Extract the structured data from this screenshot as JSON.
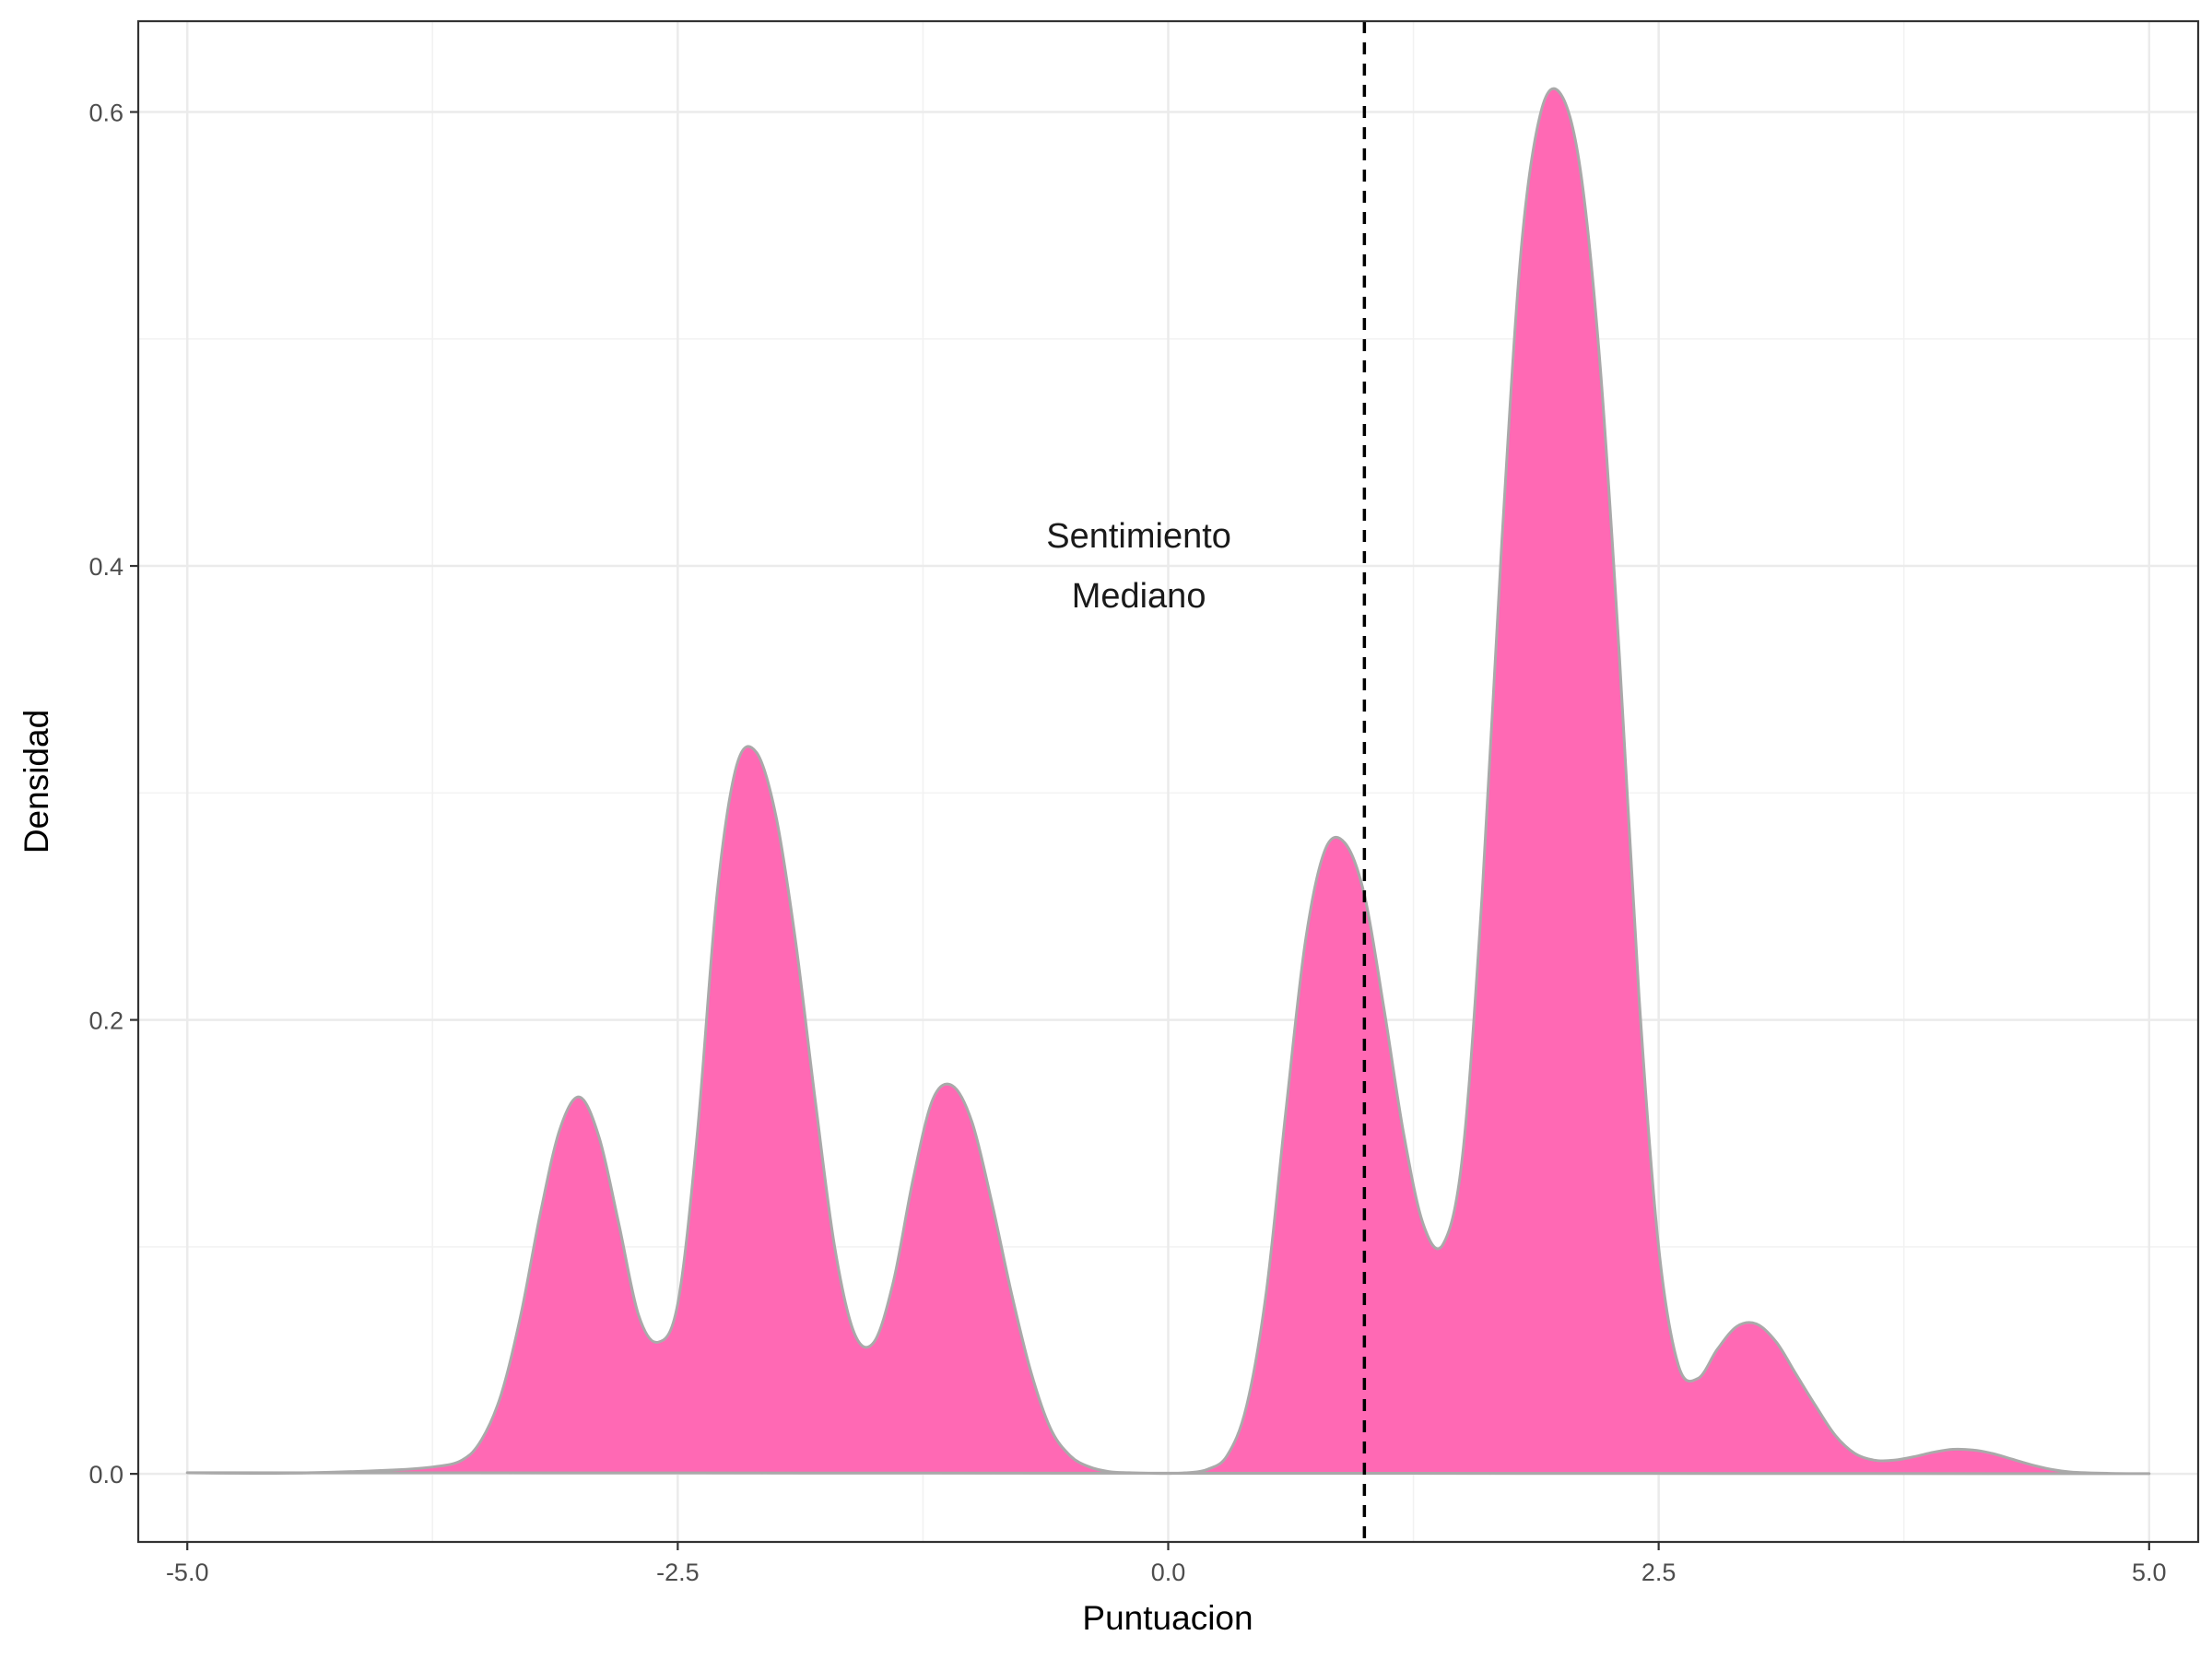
{
  "chart_data": {
    "type": "area",
    "xlabel": "Puntuacion",
    "ylabel": "Densidad",
    "xlim": [
      -5.25,
      5.25
    ],
    "ylim": [
      -0.03,
      0.64
    ],
    "x_ticks": [
      -5.0,
      -2.5,
      0.0,
      2.5,
      5.0
    ],
    "x_tick_labels": [
      "-5.0",
      "-2.5",
      "0.0",
      "2.5",
      "5.0"
    ],
    "y_ticks": [
      0.0,
      0.2,
      0.4,
      0.6
    ],
    "y_tick_labels": [
      "0.0",
      "0.2",
      "0.4",
      "0.6"
    ],
    "grid": true,
    "fill_color": "#FF69B4",
    "outline_color": "#A9A9A9",
    "median_line": {
      "x": 1.0,
      "style": "dashed",
      "color": "#000000"
    },
    "annotation": {
      "lines": [
        "Sentimiento",
        "Mediano"
      ],
      "x": -0.15,
      "y": 0.4
    },
    "series": [
      {
        "x": [
          -5.0,
          -4.5,
          -4.0,
          -3.75,
          -3.6,
          -3.5,
          -3.4,
          -3.3,
          -3.2,
          -3.1,
          -3.0,
          -2.9,
          -2.8,
          -2.7,
          -2.6,
          -2.5,
          -2.4,
          -2.3,
          -2.2,
          -2.1,
          -2.0,
          -1.9,
          -1.8,
          -1.7,
          -1.6,
          -1.5,
          -1.4,
          -1.3,
          -1.2,
          -1.1,
          -1.0,
          -0.9,
          -0.8,
          -0.7,
          -0.6,
          -0.5,
          -0.4,
          -0.3,
          -0.2,
          -0.1,
          0.0,
          0.1,
          0.2,
          0.3,
          0.4,
          0.5,
          0.6,
          0.7,
          0.8,
          0.9,
          1.0,
          1.1,
          1.2,
          1.3,
          1.4,
          1.5,
          1.6,
          1.7,
          1.8,
          1.9,
          2.0,
          2.1,
          2.2,
          2.3,
          2.4,
          2.5,
          2.6,
          2.7,
          2.8,
          2.9,
          3.0,
          3.1,
          3.2,
          3.3,
          3.4,
          3.5,
          3.6,
          3.7,
          3.8,
          3.9,
          4.0,
          4.1,
          4.2,
          4.3,
          4.4,
          4.5,
          4.6,
          4.8,
          5.0
        ],
        "y": [
          0.0005,
          0.0003,
          0.0015,
          0.003,
          0.006,
          0.015,
          0.035,
          0.07,
          0.115,
          0.152,
          0.166,
          0.148,
          0.11,
          0.07,
          0.058,
          0.075,
          0.15,
          0.255,
          0.312,
          0.318,
          0.29,
          0.235,
          0.165,
          0.1,
          0.062,
          0.058,
          0.085,
          0.13,
          0.165,
          0.171,
          0.155,
          0.12,
          0.08,
          0.045,
          0.02,
          0.008,
          0.003,
          0.001,
          0.0005,
          0.0003,
          0.0002,
          0.0005,
          0.002,
          0.008,
          0.03,
          0.08,
          0.16,
          0.235,
          0.275,
          0.278,
          0.255,
          0.205,
          0.15,
          0.11,
          0.101,
          0.14,
          0.255,
          0.41,
          0.54,
          0.6,
          0.608,
          0.575,
          0.49,
          0.36,
          0.21,
          0.1,
          0.048,
          0.042,
          0.055,
          0.065,
          0.066,
          0.058,
          0.044,
          0.03,
          0.017,
          0.009,
          0.006,
          0.006,
          0.0075,
          0.0095,
          0.0108,
          0.0105,
          0.009,
          0.0065,
          0.004,
          0.002,
          0.0008,
          0.0002,
          0.0001
        ]
      }
    ]
  }
}
